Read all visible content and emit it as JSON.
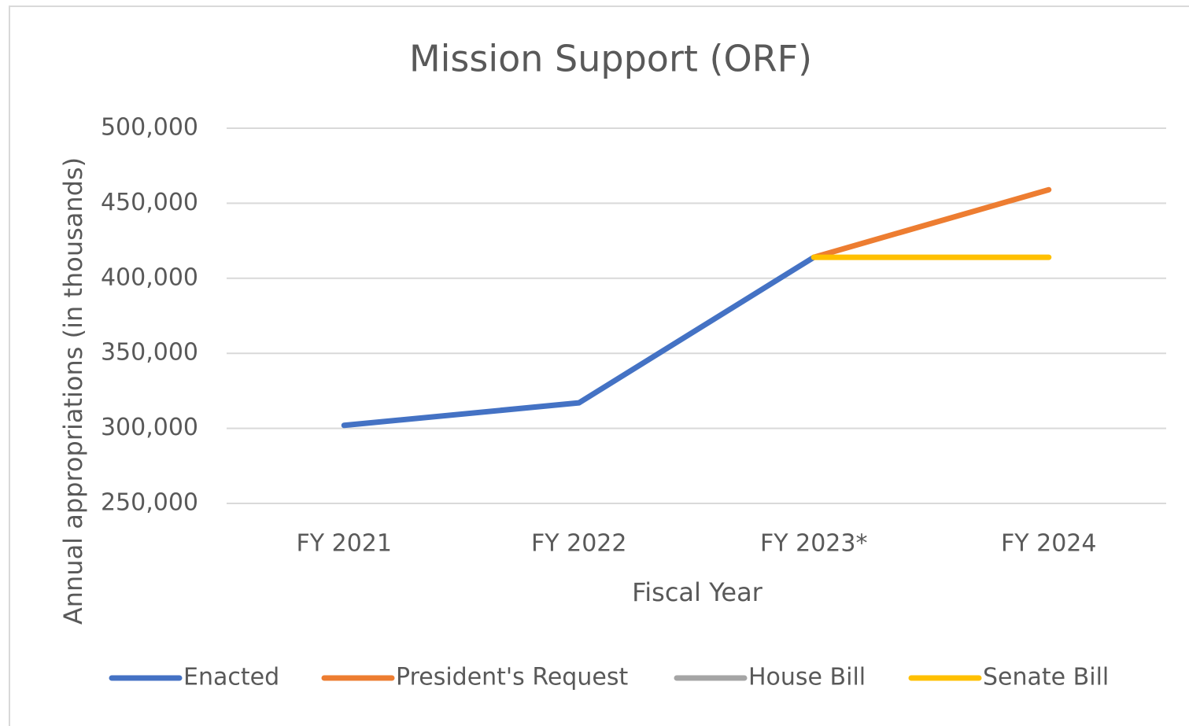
{
  "chart_data": {
    "type": "line",
    "title": "Mission Support (ORF)",
    "x_label": "Fiscal Year",
    "y_label": "Annual appropriations (in thousands)",
    "categories": [
      "FY 2021",
      "FY 2022",
      "FY 2023*",
      "FY 2024"
    ],
    "series": [
      {
        "name": "Enacted",
        "color": "#4472c4",
        "values": [
          302000,
          317000,
          414000,
          null
        ]
      },
      {
        "name": "President's Request",
        "color": "#ed7d31",
        "values": [
          null,
          null,
          414000,
          459000
        ]
      },
      {
        "name": "House Bill",
        "color": "#a5a5a5",
        "values": [
          null,
          null,
          null,
          null
        ]
      },
      {
        "name": "Senate Bill",
        "color": "#ffc000",
        "values": [
          null,
          null,
          414000,
          414000
        ]
      }
    ],
    "ylim": [
      250000,
      500000
    ],
    "yticks": [
      {
        "value": 250000,
        "label": "250,000"
      },
      {
        "value": 300000,
        "label": "300,000"
      },
      {
        "value": 350000,
        "label": "350,000"
      },
      {
        "value": 400000,
        "label": "400,000"
      },
      {
        "value": 450000,
        "label": "450,000"
      },
      {
        "value": 500000,
        "label": "500,000"
      }
    ],
    "grid": true,
    "legend": "bottom"
  }
}
